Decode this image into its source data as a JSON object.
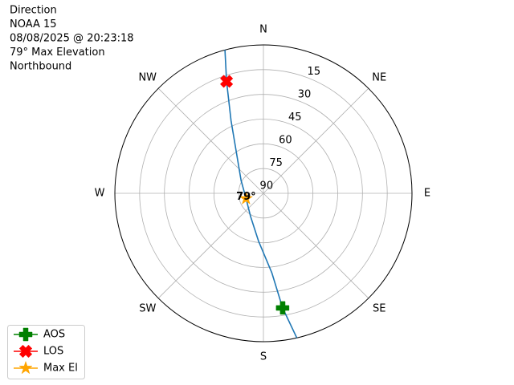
{
  "chart_data": {
    "type": "polar",
    "title": [
      "Direction",
      "NOAA 15",
      "08/08/2025 @ 20:23:18",
      "79° Max Elevation",
      "Northbound"
    ],
    "xticks": [
      {
        "value": 0,
        "label": "N"
      },
      {
        "value": 45,
        "label": "NE"
      },
      {
        "value": 90,
        "label": "E"
      },
      {
        "value": 135,
        "label": "SE"
      },
      {
        "value": 180,
        "label": "S"
      },
      {
        "value": 225,
        "label": "SW"
      },
      {
        "value": 270,
        "label": "W"
      },
      {
        "value": 315,
        "label": "NW"
      }
    ],
    "ylim": [
      90,
      0
    ],
    "yticks": [
      15,
      30,
      45,
      60,
      75,
      90
    ],
    "grid": true,
    "track": {
      "color": "#1f77b4",
      "azimuth": [
        167,
        170.5,
        174,
        186,
        209,
        253,
        300,
        322,
        336,
        341.8,
        345
      ],
      "elevation": [
        0,
        19.5,
        41.6,
        61,
        73.9,
        79,
        74.4,
        64.7,
        41.8,
        18.5,
        0
      ]
    },
    "markers": [
      {
        "name": "AOS",
        "color": "green",
        "shape": "plus",
        "azimuth": 170.5,
        "elevation": 19.5
      },
      {
        "name": "LOS",
        "color": "red",
        "shape": "x",
        "azimuth": 341.8,
        "elevation": 18.5
      },
      {
        "name": "Max El",
        "color": "orange",
        "shape": "star",
        "azimuth": 253,
        "elevation": 79
      }
    ],
    "annotation": "79°",
    "legend": "lower left"
  }
}
